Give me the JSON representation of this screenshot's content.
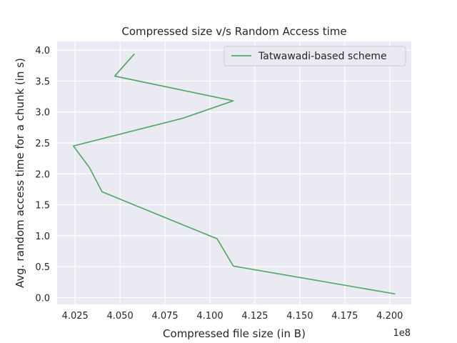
{
  "chart_data": {
    "type": "line",
    "title": "Compressed size v/s Random Access time",
    "xlabel": "Compressed file size (in B)",
    "ylabel": "Avg. random access time for a chunk (in s)",
    "x_offset_label": "1e8",
    "x_scale": 100000000,
    "xlim": [
      4.015,
      4.212
    ],
    "ylim": [
      -0.11,
      4.14
    ],
    "xticks": [
      4.025,
      4.05,
      4.075,
      4.1,
      4.125,
      4.15,
      4.175,
      4.2
    ],
    "xtick_labels": [
      "4.025",
      "4.050",
      "4.075",
      "4.100",
      "4.125",
      "4.150",
      "4.175",
      "4.200"
    ],
    "yticks": [
      0.0,
      0.5,
      1.0,
      1.5,
      2.0,
      2.5,
      3.0,
      3.5,
      4.0
    ],
    "ytick_labels": [
      "0.0",
      "0.5",
      "1.0",
      "1.5",
      "2.0",
      "2.5",
      "3.0",
      "3.5",
      "4.0"
    ],
    "grid": true,
    "legend_position": "top-right",
    "series": [
      {
        "name": "Tatwawadi-based scheme",
        "color": "#55a868",
        "x": [
          4.058,
          4.047,
          4.113,
          4.085,
          4.024,
          4.033,
          4.04,
          4.104,
          4.113,
          4.203
        ],
        "y": [
          3.94,
          3.58,
          3.18,
          2.9,
          2.45,
          2.1,
          1.71,
          0.95,
          0.51,
          0.06
        ]
      }
    ]
  }
}
